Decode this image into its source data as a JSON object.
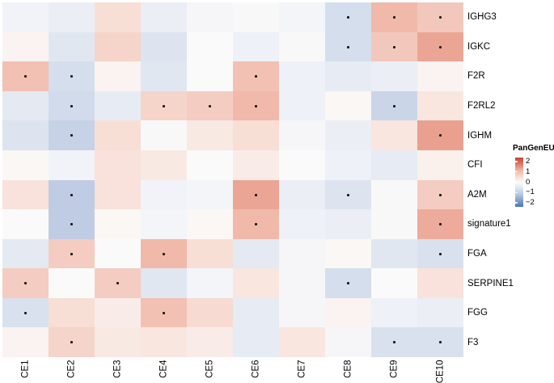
{
  "chart_data": {
    "type": "heatmap",
    "title": "",
    "legend_title": "PanGenEU",
    "legend_tick_labels": [
      "2",
      "1",
      "0",
      "−1",
      "−2"
    ],
    "legend_tick_values": [
      2,
      1,
      0,
      -1,
      -2
    ],
    "value_range": [
      -2,
      2
    ],
    "columns": [
      "CE1",
      "CE2",
      "CE3",
      "CE4",
      "CE5",
      "CE6",
      "CE7",
      "CE8",
      "CE9",
      "CE10"
    ],
    "rows": [
      "IGHG3",
      "IGKC",
      "F2R",
      "F2RL2",
      "IGHM",
      "CFI",
      "A2M",
      "signature1",
      "FGA",
      "SERPINE1",
      "FGG",
      "F3"
    ],
    "values": [
      [
        -0.2,
        -0.3,
        0.4,
        -0.3,
        -0.1,
        -0.05,
        -0.15,
        -0.6,
        0.9,
        0.7
      ],
      [
        0.1,
        -0.45,
        0.55,
        -0.5,
        0.0,
        -0.25,
        -0.05,
        -0.6,
        0.7,
        1.1
      ],
      [
        0.8,
        -0.6,
        0.1,
        -0.45,
        0.0,
        0.8,
        -0.25,
        -0.35,
        -0.3,
        0.1
      ],
      [
        -0.4,
        -0.65,
        -0.35,
        0.55,
        0.65,
        0.9,
        -0.25,
        0.05,
        -0.75,
        0.3
      ],
      [
        -0.5,
        -0.8,
        0.4,
        -0.05,
        0.25,
        0.4,
        -0.1,
        -0.3,
        0.3,
        1.15
      ],
      [
        0.05,
        -0.2,
        0.35,
        0.25,
        0.0,
        0.2,
        0.0,
        -0.25,
        -0.35,
        0.15
      ],
      [
        0.35,
        -0.9,
        0.35,
        -0.2,
        -0.15,
        1.1,
        -0.3,
        -0.5,
        -0.05,
        0.65
      ],
      [
        0.0,
        -0.9,
        0.05,
        -0.15,
        0.05,
        0.9,
        -0.25,
        -0.3,
        -0.05,
        1.05
      ],
      [
        -0.4,
        0.65,
        0.0,
        0.9,
        0.4,
        -0.4,
        -0.1,
        0.05,
        -0.45,
        -0.55
      ],
      [
        0.65,
        0.0,
        0.65,
        -0.45,
        -0.15,
        0.3,
        -0.1,
        -0.6,
        0.0,
        0.35
      ],
      [
        -0.55,
        0.4,
        0.2,
        0.8,
        0.45,
        -0.35,
        -0.1,
        0.1,
        -0.25,
        -0.3
      ],
      [
        0.1,
        0.55,
        0.25,
        0.3,
        0.2,
        -0.35,
        0.3,
        -0.1,
        -0.55,
        -0.55
      ]
    ],
    "significant": [
      [
        0,
        0,
        0,
        0,
        0,
        0,
        0,
        1,
        1,
        1
      ],
      [
        0,
        0,
        0,
        0,
        0,
        0,
        0,
        1,
        1,
        1
      ],
      [
        1,
        1,
        0,
        0,
        0,
        1,
        0,
        0,
        0,
        0
      ],
      [
        0,
        1,
        0,
        1,
        1,
        1,
        0,
        0,
        1,
        0
      ],
      [
        0,
        1,
        0,
        0,
        0,
        0,
        0,
        0,
        0,
        1
      ],
      [
        0,
        0,
        0,
        0,
        0,
        0,
        0,
        0,
        0,
        0
      ],
      [
        0,
        1,
        0,
        0,
        0,
        1,
        0,
        1,
        0,
        1
      ],
      [
        0,
        1,
        0,
        0,
        0,
        1,
        0,
        0,
        0,
        1
      ],
      [
        0,
        1,
        0,
        1,
        0,
        0,
        0,
        0,
        0,
        1
      ],
      [
        1,
        0,
        1,
        0,
        0,
        0,
        0,
        1,
        0,
        0
      ],
      [
        1,
        0,
        0,
        1,
        0,
        0,
        0,
        0,
        0,
        0
      ],
      [
        0,
        1,
        0,
        0,
        0,
        0,
        0,
        0,
        1,
        1
      ]
    ],
    "colorscale": {
      "min": -2,
      "max": 2,
      "stops": [
        [
          -2.0,
          "#4a76b8"
        ],
        [
          -1.0,
          "#b7c6e0"
        ],
        [
          -0.5,
          "#dde4ef"
        ],
        [
          -0.25,
          "#eef1f7"
        ],
        [
          0.0,
          "#fbfafa"
        ],
        [
          0.25,
          "#f9e9e3"
        ],
        [
          0.5,
          "#f6d8ce"
        ],
        [
          1.0,
          "#efb1a1"
        ],
        [
          1.5,
          "#dd7763"
        ],
        [
          2.0,
          "#c64334"
        ]
      ]
    },
    "dot_color": "#1a1a1a",
    "grid": "off",
    "legend_position": "right"
  }
}
